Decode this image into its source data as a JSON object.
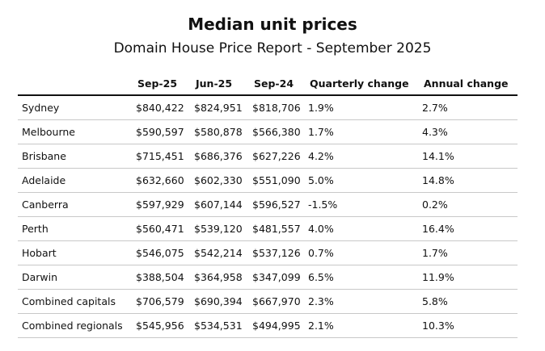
{
  "header": {
    "title": "Median unit prices",
    "subtitle": "Domain House Price Report - September 2025"
  },
  "table": {
    "columns": [
      "Sep-25",
      "Jun-25",
      "Sep-24",
      "Quarterly change",
      "Annual change"
    ],
    "rows": [
      [
        "Sydney",
        "$840,422",
        "$824,951",
        "$818,706",
        "1.9%",
        "2.7%"
      ],
      [
        "Melbourne",
        "$590,597",
        "$580,878",
        "$566,380",
        "1.7%",
        "4.3%"
      ],
      [
        "Brisbane",
        "$715,451",
        "$686,376",
        "$627,226",
        "4.2%",
        "14.1%"
      ],
      [
        "Adelaide",
        "$632,660",
        "$602,330",
        "$551,090",
        "5.0%",
        "14.8%"
      ],
      [
        "Canberra",
        "$597,929",
        "$607,144",
        "$596,527",
        "-1.5%",
        "0.2%"
      ],
      [
        "Perth",
        "$560,471",
        "$539,120",
        "$481,557",
        "4.0%",
        "16.4%"
      ],
      [
        "Hobart",
        "$546,075",
        "$542,214",
        "$537,126",
        "0.7%",
        "1.7%"
      ],
      [
        "Darwin",
        "$388,504",
        "$364,958",
        "$347,099",
        "6.5%",
        "11.9%"
      ],
      [
        "Combined capitals",
        "$706,579",
        "$690,394",
        "$667,970",
        "2.3%",
        "5.8%"
      ],
      [
        "Combined regionals",
        "$545,956",
        "$534,531",
        "$494,995",
        "2.1%",
        "10.3%"
      ]
    ]
  }
}
